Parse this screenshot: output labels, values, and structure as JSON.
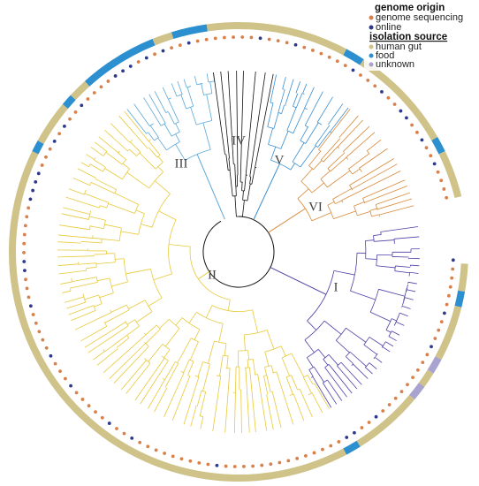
{
  "legend": {
    "genome_origin": {
      "title": "genome origin",
      "items": [
        "genome sequencing",
        "online"
      ]
    },
    "isolation_source": {
      "title": "isolation source",
      "items": [
        "human gut",
        "food",
        "unknown"
      ]
    }
  },
  "clades": [
    "I",
    "II",
    "III",
    "IV",
    "V",
    "VI"
  ]
}
